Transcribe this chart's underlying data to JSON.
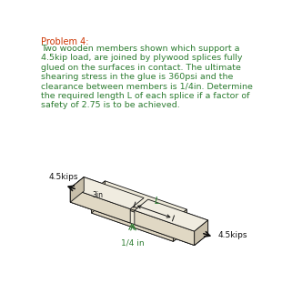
{
  "title": "Problem 4:",
  "description_lines": [
    "Two wooden members shown which support a",
    "4.5kip load, are joined by plywood splices fully",
    "glued on the surfaces in contact. The ultimate",
    "shearing stress in the glue is 360psi and the",
    "clearance between members is 1/4in. Determine",
    "the required length L of each splice if a factor of",
    "safety of 2.75 is to be achieved."
  ],
  "title_color": "#cc3300",
  "desc_color": "#2e7d32",
  "label_45kips_left": "4.5kips",
  "label_45kips_right": "4.5kips",
  "label_3in": "3in",
  "label_L": "L",
  "label_quarter": "1/4 in",
  "bg_color": "#ffffff",
  "diagram_color": "#111111",
  "green_color": "#2e7d32",
  "face_top": "#f0ece0",
  "face_front": "#e0d8c4",
  "face_side": "#c8bfaa",
  "face_dark": "#b0a890",
  "splice_top": "#ede8d8",
  "splice_front": "#ddd4c0",
  "splice_side": "#c0b8a0"
}
